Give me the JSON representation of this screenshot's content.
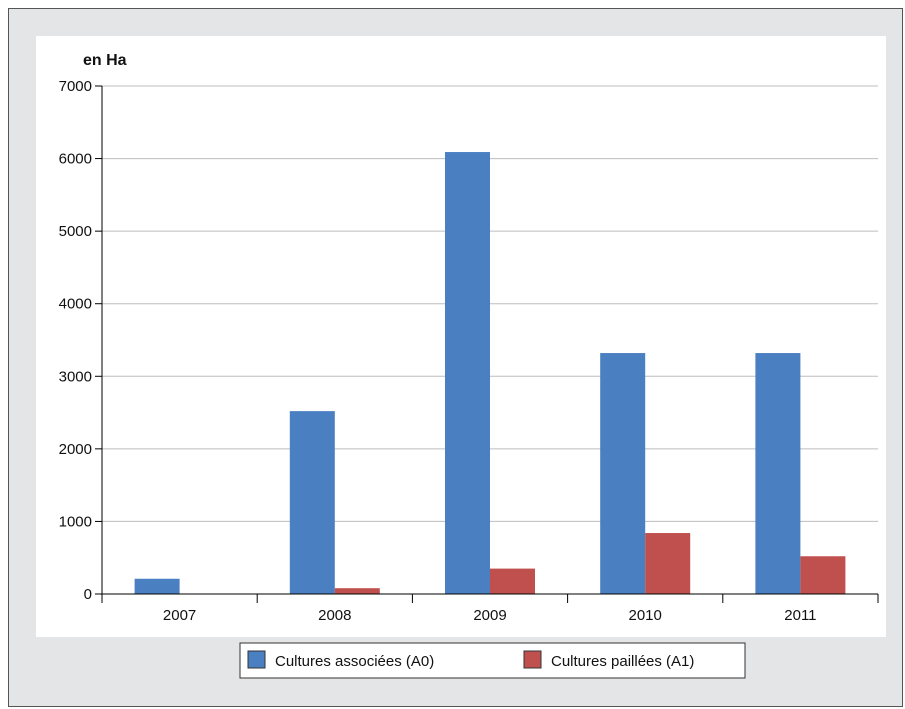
{
  "chart_data": {
    "type": "bar",
    "title": "",
    "ylabel": "en Ha",
    "xlabel": "",
    "categories": [
      "2007",
      "2008",
      "2009",
      "2010",
      "2011"
    ],
    "ylim": [
      0,
      7000
    ],
    "yticks": [
      "0",
      "1000",
      "2000",
      "3000",
      "4000",
      "5000",
      "6000",
      "7000"
    ],
    "grid": true,
    "legend_position": "bottom",
    "series": [
      {
        "name": "Cultures associées (A0)",
        "color": "#4a7fc1",
        "values": [
          210,
          2520,
          6090,
          3320,
          3320
        ]
      },
      {
        "name": "Cultures paillées (A1)",
        "color": "#c0504d",
        "values": [
          0,
          80,
          350,
          840,
          520
        ]
      }
    ]
  }
}
